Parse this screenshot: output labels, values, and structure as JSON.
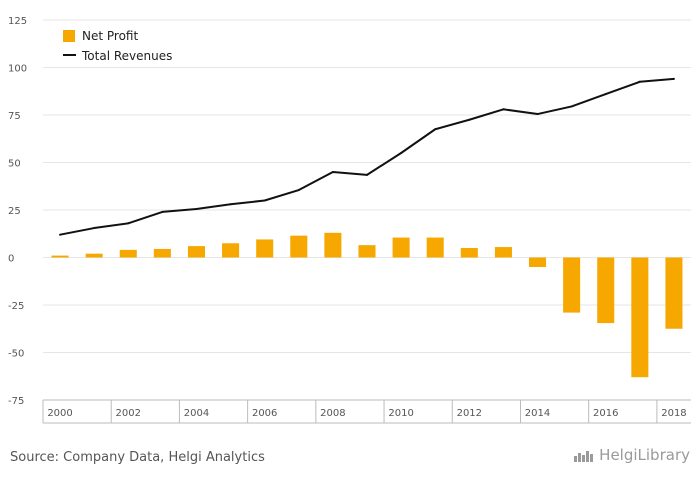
{
  "footer": {
    "source": "Source: Company Data, Helgi Analytics",
    "brand": "HelgiLibrary"
  },
  "colors": {
    "bar": "#f6a800",
    "line": "#111111",
    "grid": "#e6e6e6",
    "axis": "#bbbbbb"
  },
  "chart_data": {
    "type": "bar",
    "x": [
      2000,
      2001,
      2002,
      2003,
      2004,
      2005,
      2006,
      2007,
      2008,
      2009,
      2010,
      2011,
      2012,
      2013,
      2014,
      2015,
      2016,
      2017,
      2018
    ],
    "x_tick_labels": [
      "2000",
      "2002",
      "2004",
      "2006",
      "2008",
      "2010",
      "2012",
      "2014",
      "2016",
      "2018"
    ],
    "y_tick_labels": [
      "125",
      "100",
      "75",
      "50",
      "25",
      "0",
      "-25",
      "-50",
      "-75"
    ],
    "ylim": [
      -75,
      125
    ],
    "grid": true,
    "legend": "top-left",
    "series": [
      {
        "name": "Net Profit",
        "type": "bar",
        "values": [
          1.0,
          2.0,
          4.0,
          4.5,
          6.0,
          7.5,
          9.5,
          11.5,
          13.0,
          6.5,
          10.5,
          10.5,
          5.0,
          5.5,
          -5.0,
          -29.0,
          -34.5,
          -63.0,
          -37.5
        ]
      },
      {
        "name": "Total Revenues",
        "type": "line",
        "values": [
          12.0,
          15.5,
          18.0,
          24.0,
          25.5,
          28.0,
          30.0,
          35.5,
          45.0,
          43.5,
          55.0,
          67.5,
          72.5,
          78.0,
          75.5,
          79.5,
          86.0,
          92.5,
          94.0
        ]
      }
    ]
  }
}
